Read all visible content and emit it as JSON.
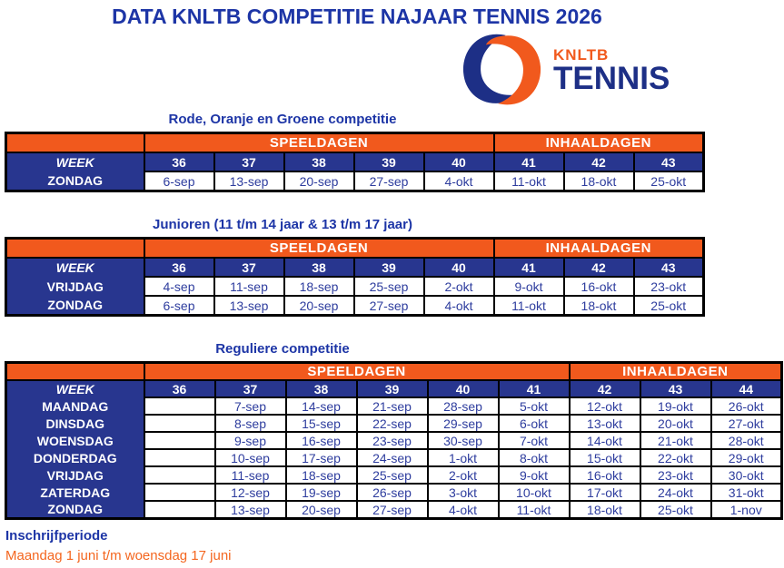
{
  "page": {
    "title": "DATA KNLTB COMPETITIE NAJAAR TENNIS 2026",
    "footer": {
      "heading": "Inschrijfperiode",
      "period": "Maandag 1 juni t/m woensdag 17 juni"
    }
  },
  "logo": {
    "top_text": "KNLTB",
    "bottom_text": "TENNIS"
  },
  "labels": {
    "week": "WEEK",
    "speeldagen": "SPEELDAGEN",
    "inhaaldagen": "INHAALDAGEN"
  },
  "colors": {
    "navy": "#28368F",
    "orange": "#F1591D",
    "heading_blue": "#1D35A6",
    "date_text_blue": "#2E3D9E",
    "footer_orange": "#F4661F"
  },
  "tables": [
    {
      "caption": "Rode, Oranje en Groene competitie",
      "speeldagen_cols": 5,
      "inhaaldagen_cols": 3,
      "weeks": [
        "36",
        "37",
        "38",
        "39",
        "40",
        "41",
        "42",
        "43"
      ],
      "rows": [
        {
          "day": "ZONDAG",
          "dates": [
            "6-sep",
            "13-sep",
            "20-sep",
            "27-sep",
            "4-okt",
            "11-okt",
            "18-okt",
            "25-okt"
          ]
        }
      ]
    },
    {
      "caption": "Junioren (11 t/m 14 jaar & 13 t/m 17 jaar)",
      "speeldagen_cols": 5,
      "inhaaldagen_cols": 3,
      "weeks": [
        "36",
        "37",
        "38",
        "39",
        "40",
        "41",
        "42",
        "43"
      ],
      "rows": [
        {
          "day": "VRIJDAG",
          "dates": [
            "4-sep",
            "11-sep",
            "18-sep",
            "25-sep",
            "2-okt",
            "9-okt",
            "16-okt",
            "23-okt"
          ]
        },
        {
          "day": "ZONDAG",
          "dates": [
            "6-sep",
            "13-sep",
            "20-sep",
            "27-sep",
            "4-okt",
            "11-okt",
            "18-okt",
            "25-okt"
          ]
        }
      ]
    },
    {
      "caption": "Reguliere competitie",
      "speeldagen_cols": 6,
      "inhaaldagen_cols": 3,
      "weeks": [
        "36",
        "37",
        "38",
        "39",
        "40",
        "41",
        "42",
        "43",
        "44"
      ],
      "rows": [
        {
          "day": "MAANDAG",
          "dates": [
            "",
            "7-sep",
            "14-sep",
            "21-sep",
            "28-sep",
            "5-okt",
            "12-okt",
            "19-okt",
            "26-okt"
          ]
        },
        {
          "day": "DINSDAG",
          "dates": [
            "",
            "8-sep",
            "15-sep",
            "22-sep",
            "29-sep",
            "6-okt",
            "13-okt",
            "20-okt",
            "27-okt"
          ]
        },
        {
          "day": "WOENSDAG",
          "dates": [
            "",
            "9-sep",
            "16-sep",
            "23-sep",
            "30-sep",
            "7-okt",
            "14-okt",
            "21-okt",
            "28-okt"
          ]
        },
        {
          "day": "DONDERDAG",
          "dates": [
            "",
            "10-sep",
            "17-sep",
            "24-sep",
            "1-okt",
            "8-okt",
            "15-okt",
            "22-okt",
            "29-okt"
          ]
        },
        {
          "day": "VRIJDAG",
          "dates": [
            "",
            "11-sep",
            "18-sep",
            "25-sep",
            "2-okt",
            "9-okt",
            "16-okt",
            "23-okt",
            "30-okt"
          ]
        },
        {
          "day": "ZATERDAG",
          "dates": [
            "",
            "12-sep",
            "19-sep",
            "26-sep",
            "3-okt",
            "10-okt",
            "17-okt",
            "24-okt",
            "31-okt"
          ]
        },
        {
          "day": "ZONDAG",
          "dates": [
            "",
            "13-sep",
            "20-sep",
            "27-sep",
            "4-okt",
            "11-okt",
            "18-okt",
            "25-okt",
            "1-nov"
          ]
        }
      ]
    }
  ],
  "layout": {
    "label_col_width": 152,
    "data_col_width_8": 77,
    "data_col_width_9": 78
  }
}
